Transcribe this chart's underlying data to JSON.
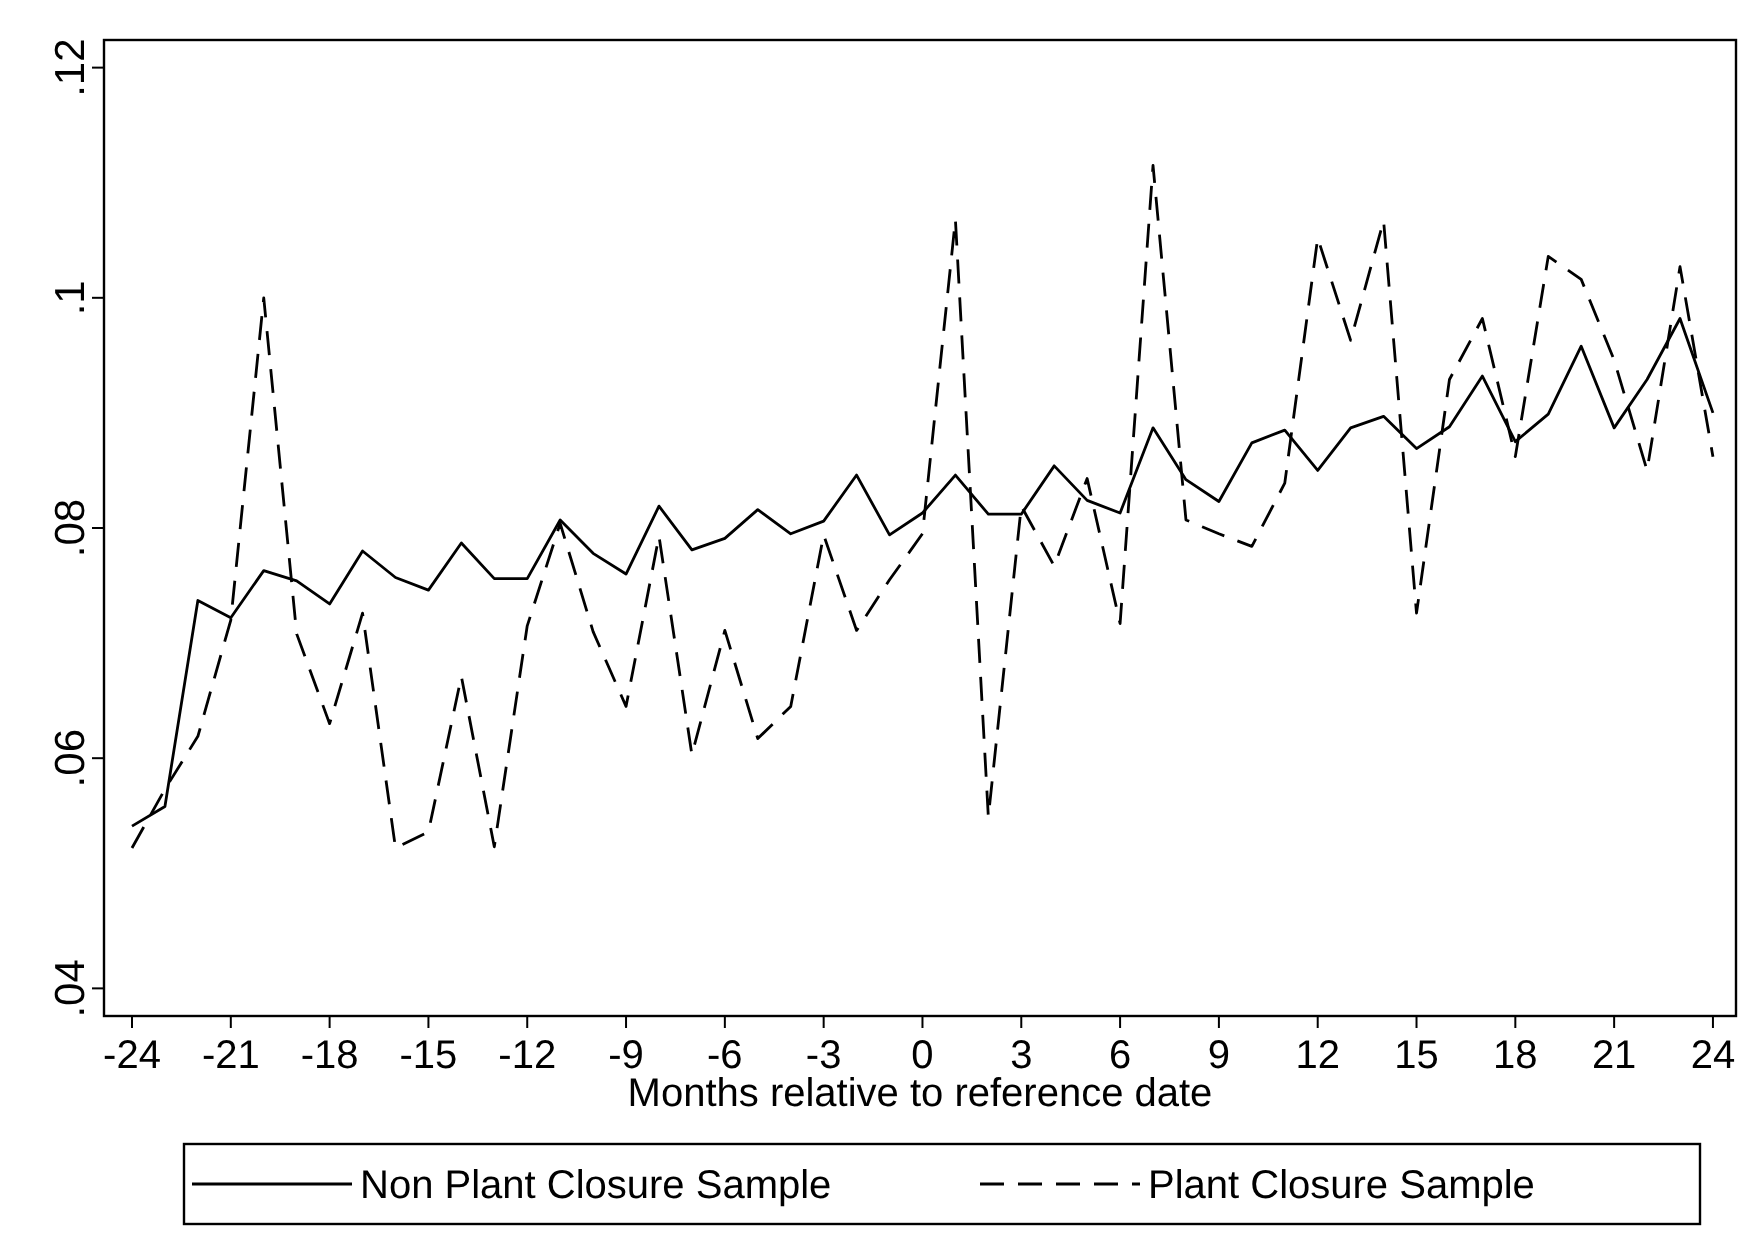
{
  "chart_data": {
    "type": "line",
    "xlabel": "Months relative to reference date",
    "x": [
      -24,
      -23,
      -22,
      -21,
      -20,
      -19,
      -18,
      -17,
      -16,
      -15,
      -14,
      -13,
      -12,
      -11,
      -10,
      -9,
      -8,
      -7,
      -6,
      -5,
      -4,
      -3,
      -2,
      -1,
      0,
      1,
      2,
      3,
      4,
      5,
      6,
      7,
      8,
      9,
      10,
      11,
      12,
      13,
      14,
      15,
      16,
      17,
      18,
      19,
      20,
      21,
      22,
      23,
      24
    ],
    "series": [
      {
        "name": "Non Plant Closure Sample",
        "color": "#000000",
        "line_style": "solid",
        "values": [
          0.0541,
          0.0558,
          0.0737,
          0.0722,
          0.0763,
          0.0754,
          0.0734,
          0.078,
          0.0757,
          0.0746,
          0.0787,
          0.0756,
          0.0756,
          0.0807,
          0.0778,
          0.076,
          0.0819,
          0.0781,
          0.0791,
          0.0816,
          0.0795,
          0.0806,
          0.0846,
          0.0794,
          0.0813,
          0.0846,
          0.0812,
          0.0812,
          0.0854,
          0.0824,
          0.0813,
          0.0887,
          0.0842,
          0.0823,
          0.0874,
          0.0885,
          0.085,
          0.0887,
          0.0897,
          0.0869,
          0.0888,
          0.0932,
          0.0875,
          0.0899,
          0.0958,
          0.0887,
          0.0929,
          0.0982,
          0.09
        ]
      },
      {
        "name": "Plant Closure Sample",
        "color": "#000000",
        "line_style": "dashed",
        "values": [
          0.0522,
          0.0573,
          0.0619,
          0.072,
          0.1,
          0.0708,
          0.063,
          0.0726,
          0.0522,
          0.0536,
          0.0671,
          0.0523,
          0.0715,
          0.0804,
          0.071,
          0.0645,
          0.0793,
          0.0603,
          0.0711,
          0.0617,
          0.0645,
          0.0794,
          0.0711,
          0.0755,
          0.0795,
          0.1068,
          0.0549,
          0.0819,
          0.0767,
          0.0843,
          0.0717,
          0.1115,
          0.0807,
          0.0795,
          0.0784,
          0.0839,
          0.1052,
          0.0963,
          0.1067,
          0.0726,
          0.0929,
          0.0982,
          0.0862,
          0.1036,
          0.1016,
          0.0946,
          0.085,
          0.1027,
          0.0862
        ]
      }
    ],
    "xlim": [
      -24.85,
      24.7
    ],
    "ylim": [
      0.0376,
      0.1224
    ],
    "xticks": [
      -24,
      -21,
      -18,
      -15,
      -12,
      -9,
      -6,
      -3,
      0,
      3,
      6,
      9,
      12,
      15,
      18,
      21,
      24
    ],
    "yticks": [
      {
        "value": 0.04,
        "label": ".04"
      },
      {
        "value": 0.06,
        "label": ".06"
      },
      {
        "value": 0.08,
        "label": ".08"
      },
      {
        "value": 0.1,
        "label": ".1"
      },
      {
        "value": 0.12,
        "label": ".12"
      }
    ],
    "legend": "bottom",
    "grid": false,
    "marker": "none"
  }
}
